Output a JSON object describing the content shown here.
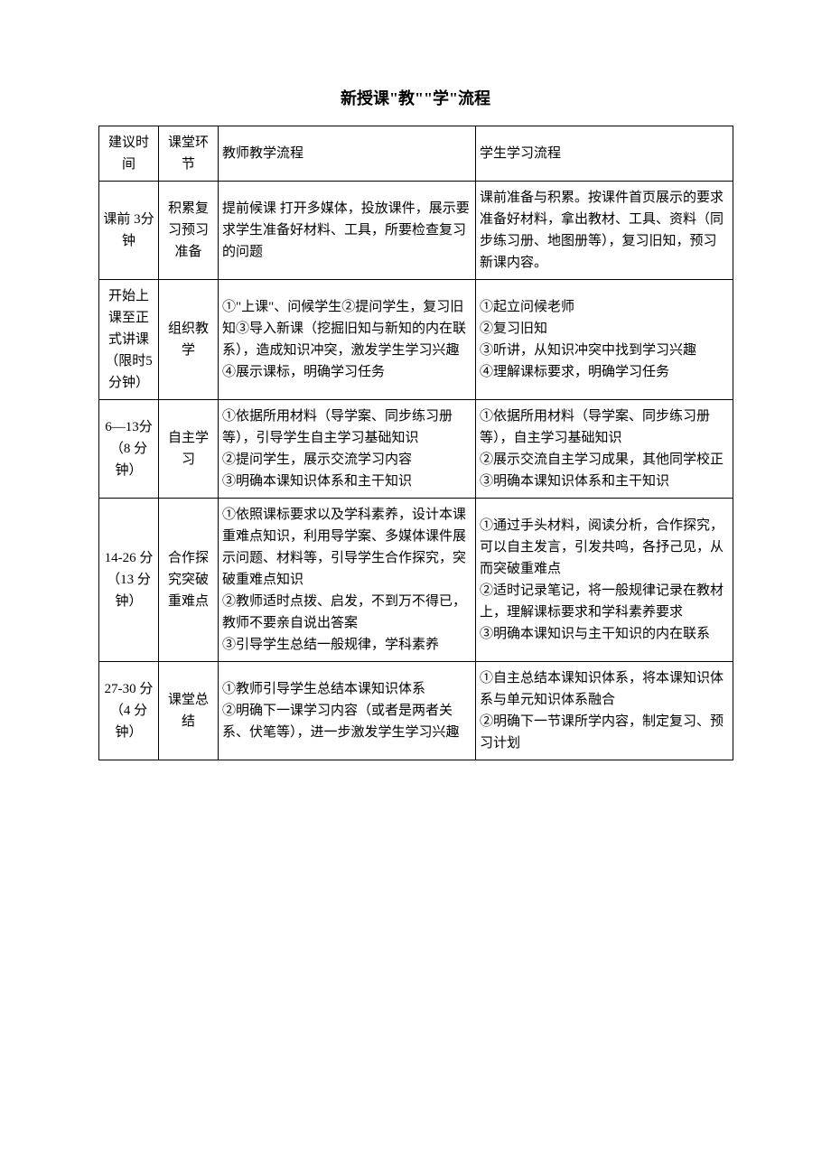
{
  "title": "新授课\"教\"\"学\"流程",
  "headers": {
    "time": "建议时间",
    "phase": "课堂环节",
    "teacher": "教师教学流程",
    "student": "学生学习流程"
  },
  "rows": [
    {
      "time": "课前 3分钟",
      "phase": "积累复习预习准备",
      "teacher": "提前候课 打开多媒体，投放课件，展示要求学生准备好材料、工具，所要检查复习的问题",
      "student": "课前准备与积累。按课件首页展示的要求准备好材料，拿出教材、工具、资料（同步练习册、地图册等），复习旧知，预习新课内容。"
    },
    {
      "time": "开始上课至正式讲课（限时5 分钟）",
      "phase": "组织教学",
      "teacher": "①\"上课\"、问候学生②提问学生，复习旧知③导入新课（挖掘旧知与新知的内在联系），造成知识冲突，激发学生学习兴趣④展示课标，明确学习任务",
      "student": "①起立问候老师\n②复习旧知\n③听讲，从知识冲突中找到学习兴趣\n④理解课标要求，明确学习任务"
    },
    {
      "time": "6—13分（8 分钟）",
      "phase": "自主学习",
      "teacher": "①依据所用材料（导学案、同步练习册等），引导学生自主学习基础知识\n②提问学生，展示交流学习内容\n③明确本课知识体系和主干知识",
      "student": "①依据所用材料（导学案、同步练习册等），自主学习基础知识\n②展示交流自主学习成果，其他同学校正\n③明确本课知识体系和主干知识"
    },
    {
      "time": "14-26 分（13 分钟）",
      "phase": "合作探究突破重难点",
      "teacher": "①依照课标要求以及学科素养，设计本课重难点知识，利用导学案、多媒体课件展示问题、材料等，引导学生合作探究，突破重难点知识\n②教师适时点拨、启发，不到万不得已，教师不要亲自说出答案\n③引导学生总结一般规律，学科素养",
      "student": "①通过手头材料，阅读分析，合作探究，可以自主发言，引发共鸣，各抒己见，从而突破重难点\n②适时记录笔记，将一般规律记录在教材上，理解课标要求和学科素养要求\n③明确本课知识与主干知识的内在联系"
    },
    {
      "time": "27-30 分（4 分钟）",
      "phase": "课堂总结",
      "teacher": "①教师引导学生总结本课知识体系\n②明确下一课学习内容（或者是两者关系、伏笔等），进一步激发学生学习兴趣",
      "student": "①自主总结本课知识体系，将本课知识体系与单元知识体系融合\n②明确下一节课所学内容，制定复习、预习计划"
    }
  ]
}
